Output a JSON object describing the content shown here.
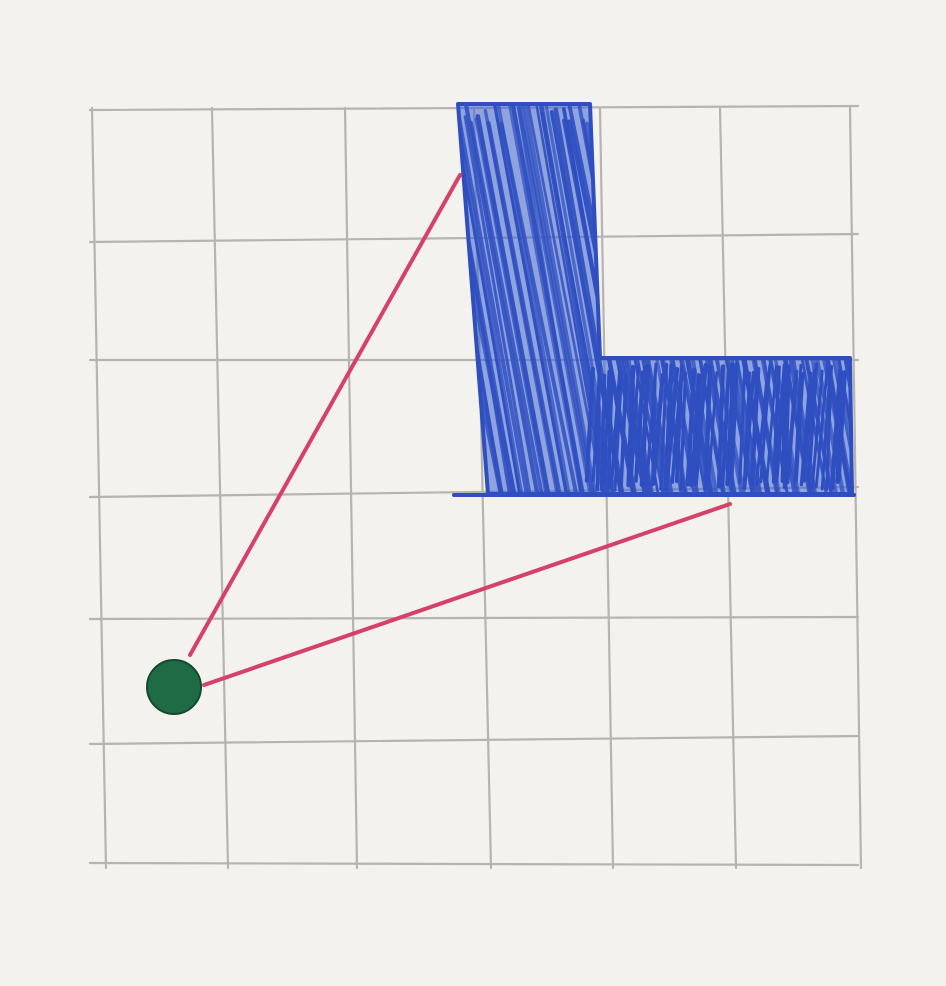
{
  "diagram": {
    "type": "grid-sketch",
    "grid": {
      "columns": 6,
      "rows": 6
    },
    "l_shape": {
      "cells": [
        [
          3,
          0
        ],
        [
          3,
          1
        ],
        [
          3,
          2
        ],
        [
          4,
          2
        ],
        [
          5,
          2
        ]
      ],
      "fill_style": "scribble-hatch"
    },
    "observer_point": {
      "col": 0.6,
      "row": 4.5
    },
    "sight_lines": [
      {
        "from": "observer_point",
        "to": {
          "col": 3.0,
          "row": 0.5
        }
      },
      {
        "from": "observer_point",
        "to": {
          "col": 5.0,
          "row": 3.0
        }
      }
    ]
  },
  "colors": {
    "paper": "#f3f2ee",
    "grid_line": "#b7b3b0",
    "shape_outline": "#2f4fc0",
    "shape_fill": "#3a62d6",
    "sight_line": "#d6416a",
    "observer": "#1f6b45"
  }
}
